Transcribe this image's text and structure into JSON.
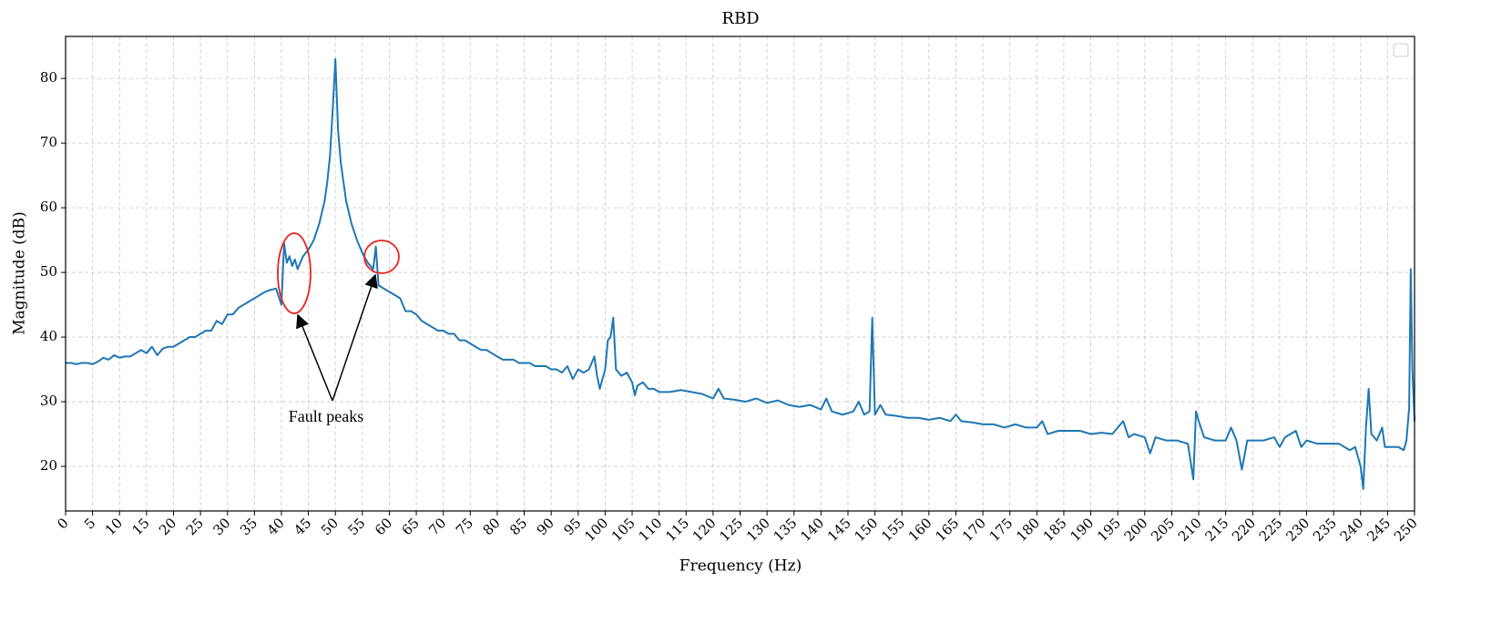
{
  "chart_data": {
    "type": "line",
    "title": "RBD",
    "x_label": "Frequency (Hz)",
    "y_label": "Magnitude (dB)",
    "annotations": [
      {
        "text": "Fault peaks"
      }
    ],
    "xlim": [
      0,
      250
    ],
    "ylim": [
      13.1,
      86.5
    ],
    "xticks": [
      0,
      5,
      10,
      15,
      20,
      25,
      30,
      35,
      40,
      45,
      50,
      55,
      60,
      65,
      70,
      75,
      80,
      85,
      90,
      95,
      100,
      105,
      110,
      115,
      120,
      125,
      130,
      135,
      140,
      145,
      150,
      155,
      160,
      165,
      170,
      175,
      180,
      185,
      190,
      195,
      200,
      205,
      210,
      215,
      220,
      225,
      230,
      235,
      240,
      245,
      250
    ],
    "yticks": [
      20,
      30,
      40,
      50,
      60,
      70,
      80
    ],
    "grid": true,
    "x": [
      0,
      1,
      2,
      3,
      4,
      5,
      6,
      7,
      8,
      9,
      10,
      11,
      12,
      13,
      14,
      15,
      16,
      17,
      18,
      19,
      20,
      21,
      22,
      23,
      24,
      25,
      26,
      27,
      28,
      29,
      30,
      31,
      32,
      33,
      34,
      35,
      36,
      37,
      38,
      39,
      40,
      40.5,
      41,
      41.5,
      42,
      42.5,
      43,
      44,
      45,
      46,
      47,
      48,
      48.5,
      49,
      49.5,
      50,
      50.5,
      51,
      52,
      53,
      54,
      55,
      56,
      57,
      57.5,
      58,
      59,
      60,
      61,
      62,
      63,
      64,
      65,
      66,
      67,
      68,
      69,
      70,
      71,
      72,
      73,
      74,
      75,
      76,
      77,
      78,
      79,
      80,
      81,
      82,
      83,
      84,
      85,
      86,
      87,
      88,
      89,
      90,
      91,
      92,
      93,
      94,
      95,
      96,
      97,
      98,
      98.5,
      99,
      100,
      100.5,
      101,
      101.5,
      102,
      103,
      104,
      105,
      105.5,
      106,
      107,
      108,
      109,
      110,
      112,
      114,
      116,
      118,
      120,
      121,
      122,
      124,
      126,
      128,
      130,
      132,
      134,
      136,
      138,
      140,
      141,
      142,
      144,
      146,
      147,
      148,
      149,
      149.5,
      150,
      151,
      152,
      154,
      156,
      158,
      160,
      162,
      164,
      165,
      166,
      168,
      170,
      172,
      174,
      176,
      178,
      180,
      181,
      182,
      184,
      186,
      188,
      190,
      192,
      194,
      196,
      197,
      198,
      200,
      201,
      202,
      204,
      206,
      208,
      209,
      209.5,
      210,
      211,
      213,
      215,
      216,
      217,
      218,
      219,
      220,
      222,
      224,
      225,
      226,
      228,
      229,
      230,
      232,
      234,
      236,
      238,
      239,
      240,
      240.5,
      241,
      241.5,
      242,
      243,
      244,
      244.5,
      246,
      247,
      248,
      248.5,
      249,
      249.3,
      249.6,
      250
    ],
    "series": [
      {
        "color": "#1f77b4",
        "values": [
          36,
          36,
          35.8,
          36,
          36,
          35.8,
          36.2,
          36.8,
          36.5,
          37.2,
          36.8,
          37,
          37,
          37.5,
          38,
          37.5,
          38.5,
          37.2,
          38.2,
          38.5,
          38.5,
          39,
          39.5,
          40,
          40,
          40.5,
          41,
          41,
          42.5,
          42,
          43.5,
          43.5,
          44.5,
          45,
          45.5,
          46,
          46.5,
          47,
          47.3,
          47.5,
          45,
          54.5,
          51.5,
          52.5,
          51,
          52,
          50.5,
          52.5,
          53.5,
          55,
          57.5,
          61,
          64,
          68,
          75,
          83,
          72,
          67,
          61,
          57.5,
          55,
          53,
          51.5,
          50.5,
          54,
          48,
          47.5,
          47,
          46.5,
          46,
          44,
          44,
          43.5,
          42.5,
          42,
          41.5,
          41,
          41,
          40.5,
          40.5,
          39.5,
          39.5,
          39,
          38.5,
          38,
          38,
          37.5,
          37,
          36.5,
          36.5,
          36.5,
          36,
          36,
          36,
          35.5,
          35.5,
          35.5,
          35,
          35,
          34.5,
          35.5,
          33.5,
          35,
          34.5,
          35,
          37,
          34,
          32,
          35,
          39.5,
          40,
          43,
          35,
          34,
          34.5,
          33,
          31,
          32.5,
          33,
          32,
          32,
          31.5,
          31.5,
          31.8,
          31.5,
          31.2,
          30.5,
          32,
          30.5,
          30.3,
          30,
          30.5,
          29.8,
          30.2,
          29.5,
          29.2,
          29.5,
          28.8,
          30.5,
          28.5,
          28,
          28.5,
          30,
          28,
          28.5,
          43,
          28,
          29.5,
          28,
          27.8,
          27.5,
          27.5,
          27.2,
          27.5,
          27,
          28,
          27,
          26.8,
          26.5,
          26.5,
          26,
          26.5,
          26,
          26,
          27,
          25,
          25.5,
          25.5,
          25.5,
          25,
          25.2,
          25,
          27,
          24.5,
          25,
          24.5,
          22,
          24.5,
          24,
          24,
          23.5,
          18,
          28.5,
          27,
          24.5,
          24,
          24,
          26,
          24,
          19.5,
          24,
          24,
          24,
          24.5,
          23,
          24.5,
          25.5,
          23,
          24,
          23.5,
          23.5,
          23.5,
          22.5,
          23,
          20,
          16.5,
          26,
          32,
          25,
          24,
          26,
          23,
          23,
          23,
          22.5,
          24,
          29,
          50.5,
          35,
          27
        ]
      }
    ]
  }
}
